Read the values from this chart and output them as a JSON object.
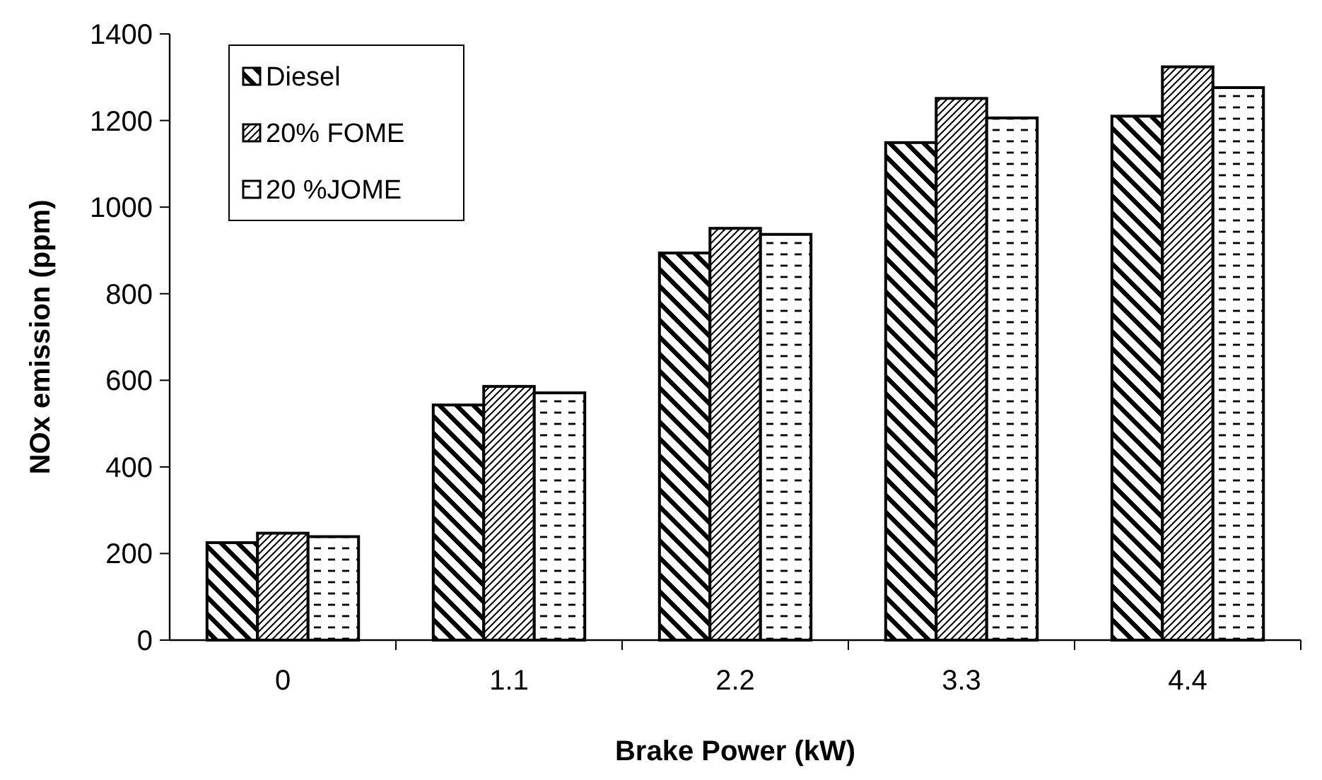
{
  "chart_data": {
    "type": "bar",
    "xlabel": "Brake Power (kW)",
    "ylabel": "NOx emission (ppm)",
    "categories": [
      "0",
      "1.1",
      "2.2",
      "3.3",
      "4.4"
    ],
    "series": [
      {
        "name": "Diesel",
        "color": "#000000",
        "values": [
          225,
          543,
          894,
          1149,
          1210
        ]
      },
      {
        "name": "20% FOME",
        "color": "#000000",
        "values": [
          247,
          586,
          951,
          1251,
          1324
        ]
      },
      {
        "name": "20 %JOME",
        "color": "#000000",
        "values": [
          239,
          571,
          937,
          1206,
          1276
        ]
      }
    ],
    "ylim": [
      0,
      1400
    ],
    "yticks": [
      0,
      200,
      400,
      600,
      800,
      1000,
      1200,
      1400
    ],
    "grid": false,
    "legend": "top left"
  }
}
